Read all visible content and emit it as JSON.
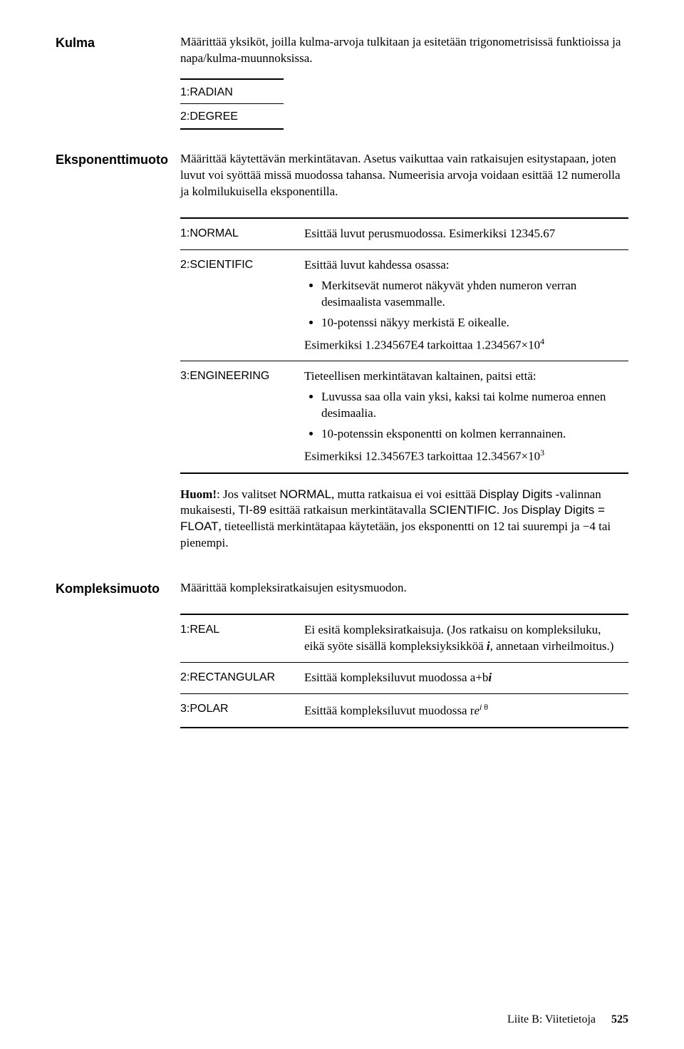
{
  "sections": {
    "kulma": {
      "heading": "Kulma",
      "para": "Määrittää yksiköt, joilla kulma-arvoja tulkitaan ja esitetään trigonometrisissä funktioissa ja napa/kulma-muunnoksissa.",
      "options": [
        "1:RADIAN",
        "2:DEGREE"
      ]
    },
    "eksponentti": {
      "heading": "Eksponenttimuoto",
      "para": "Määrittää käytettävän merkintätavan. Asetus vaikuttaa vain ratkaisujen esitystapaan, joten luvut voi syöttää missä muodossa tahansa. Numeerisia arvoja voidaan esittää 12 numerolla ja kolmilukuisella eksponentilla.",
      "rows": {
        "normal": {
          "label": "1:NORMAL",
          "desc": "Esittää luvut perusmuodossa. Esimerkiksi 12345.67"
        },
        "scientific": {
          "label": "2:SCIENTIFIC",
          "lead": "Esittää luvut kahdessa osassa:",
          "b1": "Merkitsevät numerot näkyvät yhden numeron verran desimaalista vasemmalle.",
          "b2_pre": "10-potenssi näkyy merkistä ",
          "b2_e": "E",
          "b2_post": " oikealle.",
          "ex_pre": "Esimerkiksi 1.234567",
          "ex_e": "E",
          "ex_mid": "4 tarkoittaa 1.234567×10",
          "ex_sup": "4"
        },
        "engineering": {
          "label": "3:ENGINEERING",
          "lead": "Tieteellisen merkintätavan kaltainen, paitsi että:",
          "b1": "Luvussa saa olla vain yksi, kaksi tai kolme numeroa ennen desimaalia.",
          "b2": "10-potenssin eksponentti on kolmen kerrannainen.",
          "ex_pre": "Esimerkiksi 12.34567",
          "ex_e": "E",
          "ex_mid": "3 tarkoittaa 12.34567×10",
          "ex_sup": "3"
        }
      },
      "note": {
        "bold": "Huom!",
        "t1": ": Jos valitset ",
        "w1": "NORMAL",
        "t2": ", mutta ratkaisua ei voi esittää ",
        "w2": "Display Digits",
        "t3": " -valinnan mukaisesti, ",
        "w3": "TI-89",
        "t4": " esittää ratkaisun merkintätavalla ",
        "w4": "SCIENTIFIC",
        "t5": ". Jos ",
        "w5": "Display Digits = FLOAT",
        "t6": ", tieteellistä merkintätapaa käytetään, jos eksponentti on 12 tai suurempi ja −4 tai pienempi."
      }
    },
    "kompleksi": {
      "heading": "Kompleksimuoto",
      "para": "Määrittää kompleksiratkaisujen esitysmuodon.",
      "rows": {
        "real": {
          "label": "1:REAL",
          "t1": "Ei esitä kompleksiratkaisuja. (Jos ratkaisu on kompleksiluku, eikä syöte sisällä kompleksiyksikköä ",
          "i": "i",
          "t2": ", annetaan virheilmoitus.)"
        },
        "rect": {
          "label": "2:RECTANGULAR",
          "t1": "Esittää kompleksiluvut muodossa a+b",
          "i": "i"
        },
        "polar": {
          "label": "3:POLAR",
          "t1": "Esittää kompleksiluvut muodossa r",
          "e": "e",
          "sup1": "i ",
          "sup2": "θ"
        }
      }
    }
  },
  "footer": {
    "text": "Liite B: Viitetietoja",
    "page": "525"
  }
}
